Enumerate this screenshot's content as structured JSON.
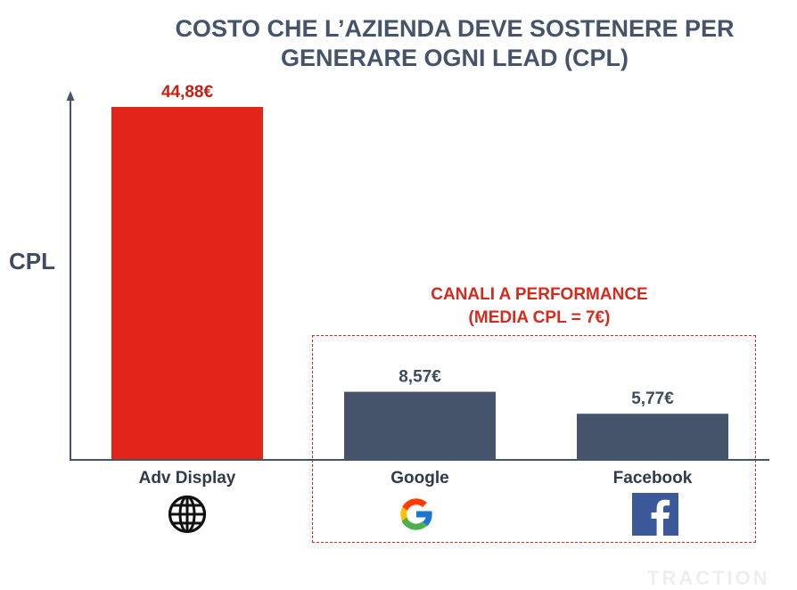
{
  "chart_data": {
    "type": "bar",
    "title_lines": [
      "COSTO CHE L’AZIENDA DEVE SOSTENERE PER",
      "GENERARE OGNI LEAD (CPL)"
    ],
    "ylabel": "CPL",
    "categories": [
      "Adv Display",
      "Google",
      "Facebook"
    ],
    "values": [
      44.88,
      8.57,
      5.77
    ],
    "value_labels": [
      "44,88€",
      "8,57€",
      "5,77€"
    ],
    "ylim": [
      0,
      44.88
    ],
    "annotation_lines": [
      "CANALI A PERFORMANCE",
      "(MEDIA CPL = 7€)"
    ],
    "colors": [
      "#e32418",
      "#46546b",
      "#46546b"
    ],
    "value_label_colors": [
      "#c81e12",
      "#3f4b5f",
      "#3f4b5f"
    ]
  },
  "icons": [
    "globe-icon",
    "google-icon",
    "facebook-icon"
  ],
  "watermark": "TRACTION"
}
